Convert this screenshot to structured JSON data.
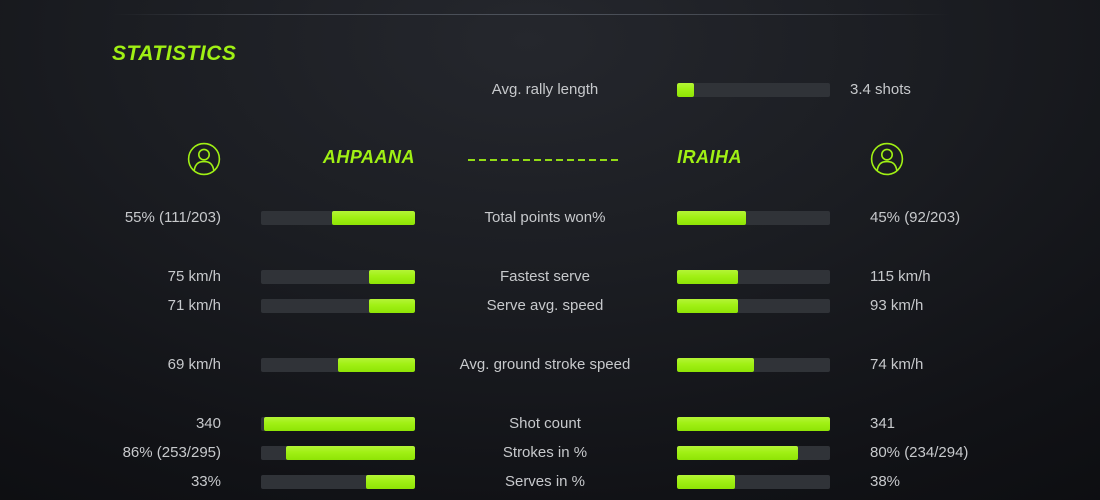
{
  "page": {
    "title": "STATISTICS"
  },
  "colors": {
    "accent": "#a0f014",
    "track": "#303338",
    "text": "#c7c9cc",
    "background": "#16181d"
  },
  "icons": {
    "left_avatar": "user-avatar-icon",
    "right_avatar": "user-avatar-icon"
  },
  "header_stat": {
    "label": "Avg. rally length",
    "value": "3.4 shots",
    "fill": "11%"
  },
  "players": {
    "left": {
      "name": "AHPAANA"
    },
    "right": {
      "name": "IRAIHA"
    }
  },
  "chart_data": {
    "type": "bar",
    "title": "STATISTICS",
    "legend_entries": [
      "AHPAANA",
      "IRAIHA"
    ],
    "categories": [
      "Avg. rally length",
      "Total points won%",
      "Fastest serve",
      "Serve avg. speed",
      "Avg. ground stroke speed",
      "Shot count",
      "Strokes in %",
      "Serves in %"
    ],
    "series": [
      {
        "name": "AHPAANA",
        "values": [
          null,
          "55% (111/203)",
          "75 km/h",
          "71 km/h",
          "69 km/h",
          "340",
          "86% (253/295)",
          "33%"
        ]
      },
      {
        "name": "IRAIHA",
        "values": [
          "3.4 shots",
          "45% (92/203)",
          "115 km/h",
          "93 km/h",
          "74 km/h",
          "341",
          "80% (234/294)",
          "38%"
        ]
      }
    ]
  },
  "rows": [
    {
      "label": "Total points won%",
      "left_value": "55% (111/203)",
      "right_value": "45% (92/203)",
      "left_fill": "54%",
      "right_fill": "45%",
      "gap_before": false
    },
    {
      "label": "Fastest serve",
      "left_value": "75 km/h",
      "right_value": "115 km/h",
      "left_fill": "30%",
      "right_fill": "40%",
      "gap_before": true
    },
    {
      "label": "Serve avg. speed",
      "left_value": "71 km/h",
      "right_value": "93 km/h",
      "left_fill": "30%",
      "right_fill": "40%",
      "gap_before": false
    },
    {
      "label": "Avg. ground stroke speed",
      "left_value": "69 km/h",
      "right_value": "74 km/h",
      "left_fill": "50%",
      "right_fill": "50%",
      "gap_before": true
    },
    {
      "label": "Shot count",
      "left_value": "340",
      "right_value": "341",
      "left_fill": "98%",
      "right_fill": "100%",
      "gap_before": true
    },
    {
      "label": "Strokes in %",
      "left_value": "86% (253/295)",
      "right_value": "80% (234/294)",
      "left_fill": "84%",
      "right_fill": "79%",
      "gap_before": false
    },
    {
      "label": "Serves in %",
      "left_value": "33%",
      "right_value": "38%",
      "left_fill": "32%",
      "right_fill": "38%",
      "gap_before": false
    }
  ]
}
